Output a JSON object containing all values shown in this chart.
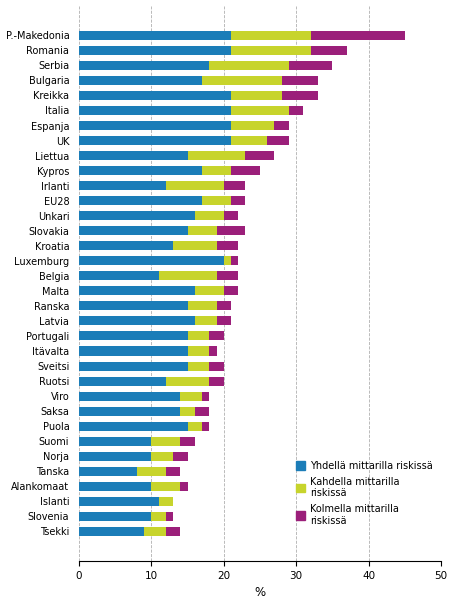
{
  "countries": [
    "P.-Makedonia",
    "Romania",
    "Serbia",
    "Bulgaria",
    "Kreikka",
    "Italia",
    "Espanja",
    "UK",
    "Liettua",
    "Kypros",
    "Irlanti",
    "EU28",
    "Unkari",
    "Slovakia",
    "Kroatia",
    "Luxemburg",
    "Belgia",
    "Malta",
    "Ranska",
    "Latvia",
    "Portugali",
    "Itävalta",
    "Sveitsi",
    "Ruotsi",
    "Viro",
    "Saksa",
    "Puola",
    "Suomi",
    "Norja",
    "Tanska",
    "Alankomaat",
    "Islanti",
    "Slovenia",
    "Tsekki"
  ],
  "val1": [
    21,
    21,
    18,
    17,
    21,
    21,
    21,
    21,
    15,
    17,
    12,
    17,
    16,
    15,
    13,
    20,
    11,
    16,
    15,
    16,
    15,
    15,
    15,
    12,
    14,
    14,
    15,
    10,
    10,
    8,
    10,
    11,
    10,
    9
  ],
  "val2": [
    11,
    11,
    11,
    11,
    7,
    8,
    6,
    5,
    8,
    4,
    8,
    4,
    4,
    4,
    6,
    1,
    8,
    4,
    4,
    3,
    3,
    3,
    3,
    6,
    3,
    2,
    2,
    4,
    3,
    4,
    4,
    2,
    2,
    3
  ],
  "val3": [
    13,
    5,
    6,
    5,
    5,
    2,
    2,
    3,
    4,
    4,
    3,
    2,
    2,
    4,
    3,
    1,
    3,
    2,
    2,
    2,
    2,
    1,
    2,
    2,
    1,
    2,
    1,
    2,
    2,
    2,
    1,
    0,
    1,
    2
  ],
  "color1": "#1b7db8",
  "color2": "#c7d42c",
  "color3": "#9b1f7a",
  "legend1": "Yhdellä mittarilla riskissä",
  "legend2": "Kahdella mittarilla\nriskissä",
  "legend3": "Kolmella mittarilla\nriskissä",
  "xlabel": "%",
  "xlim": [
    0,
    50
  ],
  "xticks": [
    0,
    10,
    20,
    30,
    40,
    50
  ],
  "background_color": "#ffffff",
  "grid_color": "#b0b0b0"
}
